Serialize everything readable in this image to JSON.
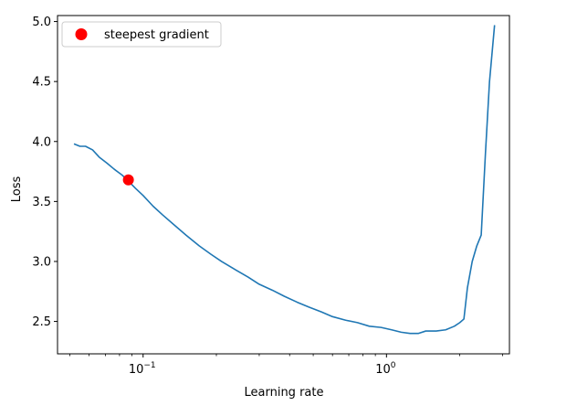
{
  "chart_data": {
    "type": "line",
    "xlabel": "Learning rate",
    "ylabel": "Loss",
    "x_scale": "log",
    "xlim": [
      0.0445,
      3.2
    ],
    "ylim": [
      2.23,
      5.05
    ],
    "x_ticks": [
      {
        "value": 0.1,
        "base": "10",
        "exp": "−1"
      },
      {
        "value": 1,
        "base": "10",
        "exp": "0"
      }
    ],
    "y_ticks": [
      {
        "value": 2.5,
        "label": "2.5"
      },
      {
        "value": 3.0,
        "label": "3.0"
      },
      {
        "value": 3.5,
        "label": "3.5"
      },
      {
        "value": 4.0,
        "label": "4.0"
      },
      {
        "value": 4.5,
        "label": "4.5"
      },
      {
        "value": 5.0,
        "label": "5.0"
      }
    ],
    "grid": false,
    "legend_position": "top-left",
    "series": [
      {
        "color": "#1f77b4",
        "x": [
          0.052,
          0.055,
          0.058,
          0.062,
          0.066,
          0.071,
          0.076,
          0.082,
          0.087,
          0.093,
          0.1,
          0.11,
          0.12,
          0.135,
          0.15,
          0.17,
          0.19,
          0.21,
          0.24,
          0.27,
          0.3,
          0.34,
          0.38,
          0.43,
          0.48,
          0.54,
          0.6,
          0.68,
          0.76,
          0.85,
          0.95,
          1.05,
          1.15,
          1.25,
          1.35,
          1.45,
          1.6,
          1.75,
          1.9,
          2.0,
          2.08,
          2.15,
          2.25,
          2.35,
          2.45,
          2.55,
          2.65,
          2.78
        ],
        "y": [
          3.98,
          3.96,
          3.96,
          3.93,
          3.87,
          3.82,
          3.77,
          3.72,
          3.67,
          3.61,
          3.55,
          3.46,
          3.39,
          3.3,
          3.22,
          3.13,
          3.06,
          3.0,
          2.93,
          2.87,
          2.81,
          2.76,
          2.71,
          2.66,
          2.62,
          2.58,
          2.54,
          2.51,
          2.49,
          2.46,
          2.45,
          2.43,
          2.41,
          2.4,
          2.4,
          2.42,
          2.42,
          2.43,
          2.46,
          2.49,
          2.52,
          2.78,
          3.0,
          3.13,
          3.22,
          3.9,
          4.5,
          4.97
        ]
      }
    ],
    "marker": {
      "name": "steepest gradient",
      "x": 0.087,
      "y": 3.68,
      "color": "#ff0000"
    }
  }
}
